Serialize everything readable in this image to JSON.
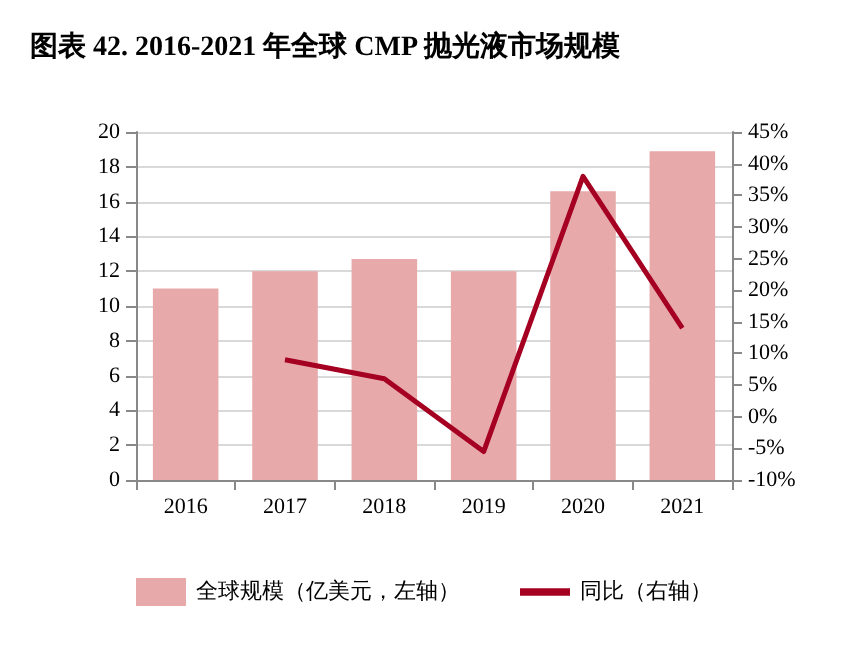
{
  "chart_data": {
    "type": "bar",
    "title": "图表 42. 2016-2021 年全球 CMP 抛光液市场规模",
    "categories": [
      "2016",
      "2017",
      "2018",
      "2019",
      "2020",
      "2021"
    ],
    "series": [
      {
        "name": "全球规模（亿美元，左轴）",
        "color": "#e8a9aa",
        "values": [
          11,
          12,
          12.7,
          12,
          16.6,
          18.9
        ]
      },
      {
        "name": "同比（右轴）",
        "type": "line",
        "axis": "y2",
        "color": "#a50021",
        "marker": "none",
        "values": [
          null,
          9,
          6,
          -5.5,
          38,
          14
        ]
      }
    ],
    "ylim": [
      0,
      20
    ],
    "yticks": [
      0,
      2,
      4,
      6,
      8,
      10,
      12,
      14,
      16,
      18,
      20
    ],
    "y2lim": [
      -10,
      45
    ],
    "y2ticks": [
      {
        "value": -10,
        "label": "-10%"
      },
      {
        "value": -5,
        "label": "-5%"
      },
      {
        "value": 0,
        "label": "0%"
      },
      {
        "value": 5,
        "label": "5%"
      },
      {
        "value": 10,
        "label": "10%"
      },
      {
        "value": 15,
        "label": "15%"
      },
      {
        "value": 20,
        "label": "20%"
      },
      {
        "value": 25,
        "label": "25%"
      },
      {
        "value": 30,
        "label": "30%"
      },
      {
        "value": 35,
        "label": "35%"
      },
      {
        "value": 40,
        "label": "40%"
      },
      {
        "value": 45,
        "label": "45%"
      }
    ],
    "grid": "y",
    "legend": "bottom"
  }
}
